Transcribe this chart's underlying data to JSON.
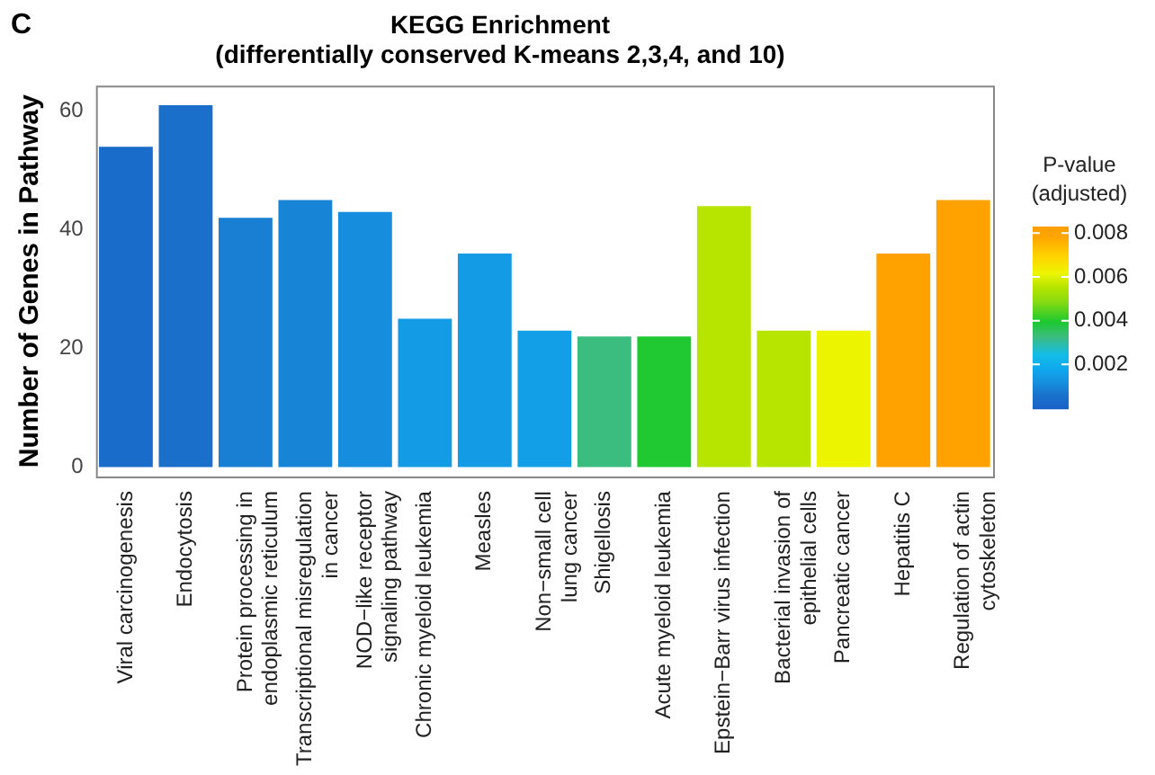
{
  "chart_data": {
    "type": "bar",
    "title": [
      "KEGG Enrichment",
      "(differentially conserved K-means 2,3,4, and 10)"
    ],
    "ylabel": "Number of Genes in Pathway",
    "clabel": "P-value\n(adjusted)",
    "annotations": [
      "C"
    ],
    "categories": [
      "Viral carcinogenesis",
      "Endocytosis",
      "Protein processing in\nendoplasmic reticulum",
      "Transcriptional misregulation\nin cancer",
      "NOD−like receptor\nsignaling pathway",
      "Chronic myeloid leukemia",
      "Measles",
      "Non−small cell\nlung cancer",
      "Shigellosis",
      "Acute myeloid leukemia",
      "Epstein−Barr virus infection",
      "Bacterial invasion of\nepithelial cells",
      "Pancreatic cancer",
      "Hepatitis C",
      "Regulation of actin\ncytoskeleton"
    ],
    "values": [
      54,
      61,
      42,
      45,
      43,
      25,
      36,
      23,
      22,
      22,
      44,
      23,
      23,
      36,
      45
    ],
    "cvalues": [
      0.0004,
      0.0005,
      0.0009,
      0.001,
      0.0012,
      0.0015,
      0.0015,
      0.0016,
      0.0033,
      0.004,
      0.0056,
      0.0056,
      0.0062,
      0.0081,
      0.0081
    ],
    "clim": [
      0,
      0.0083
    ],
    "cticks": [
      0.002,
      0.004,
      0.006,
      0.008
    ],
    "ylim": [
      -1.6,
      64.3
    ],
    "yticks": [
      0,
      20,
      40,
      60
    ],
    "grid": false,
    "legend": false
  }
}
